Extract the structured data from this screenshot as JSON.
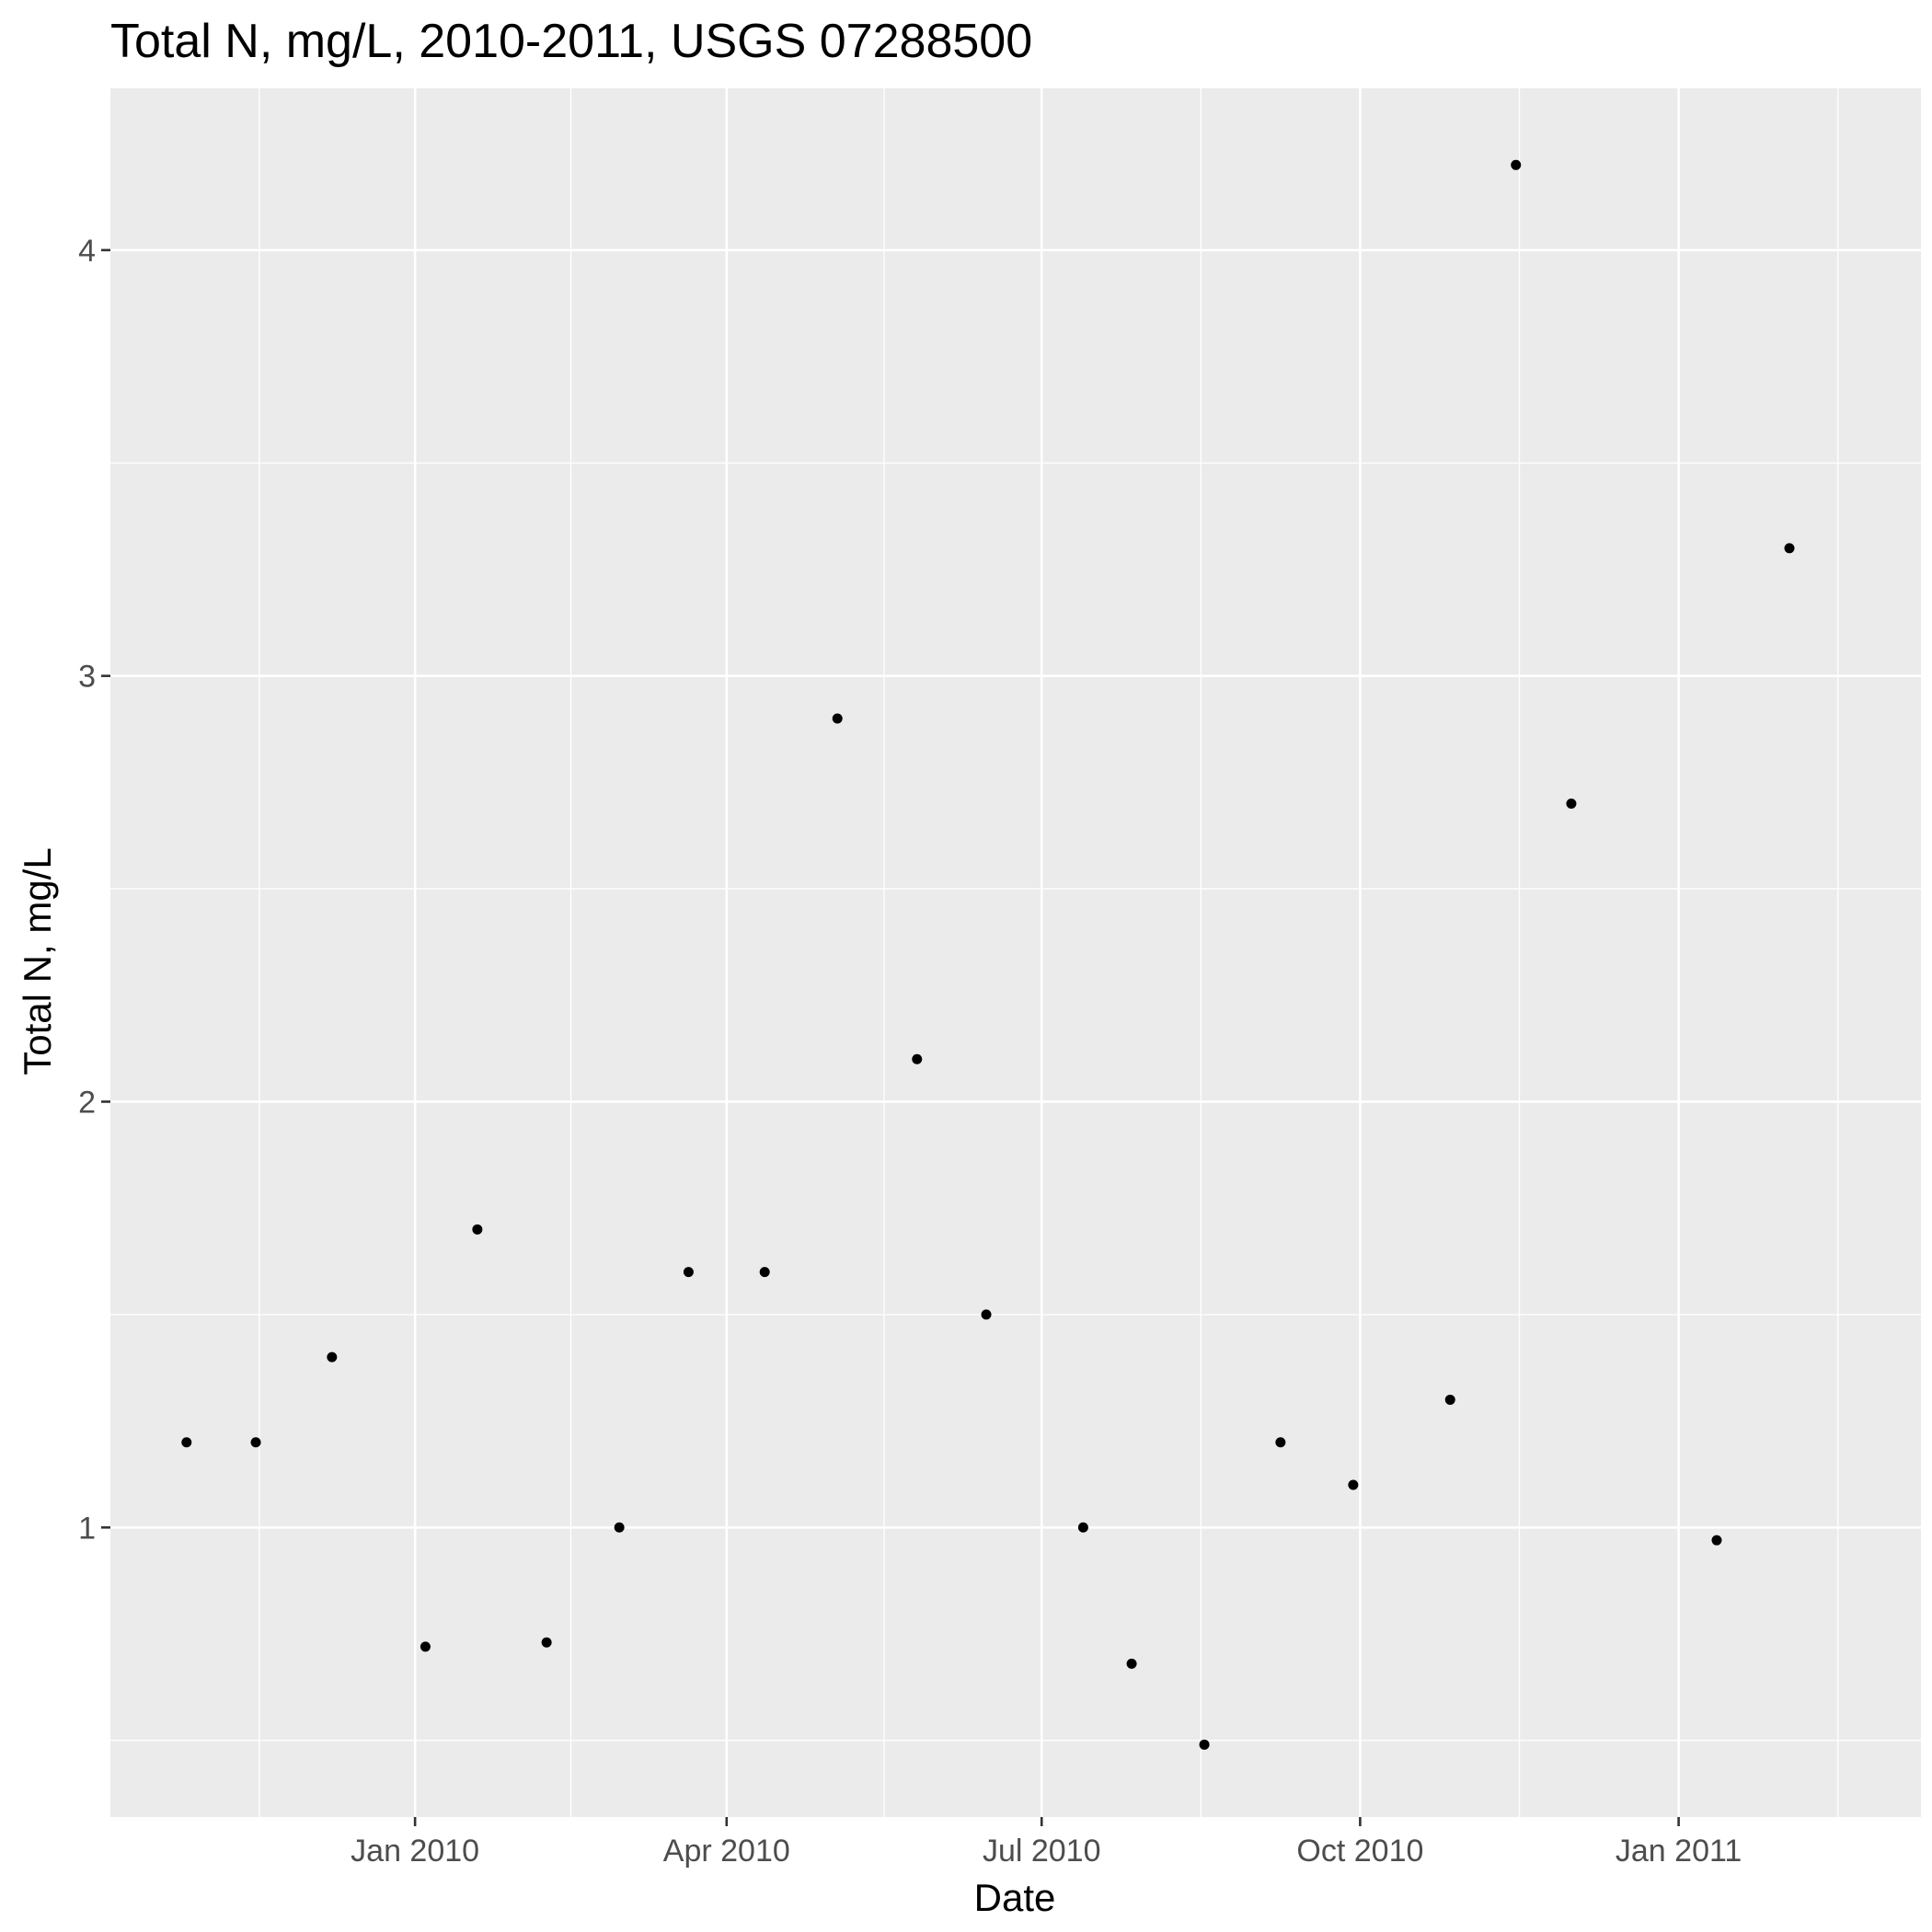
{
  "chart_data": {
    "type": "scatter",
    "title": "Total N, mg/L, 2010-2011, USGS 07288500",
    "xlabel": "Date",
    "ylabel": "Total N, mg/L",
    "x_axis_type": "date",
    "xlim": [
      "2009-10-05",
      "2011-03-12"
    ],
    "ylim": [
      0.32,
      4.38
    ],
    "x_ticks": [
      {
        "date": "2010-01-01",
        "label": "Jan 2010"
      },
      {
        "date": "2010-04-01",
        "label": "Apr 2010"
      },
      {
        "date": "2010-07-01",
        "label": "Jul 2010"
      },
      {
        "date": "2010-10-01",
        "label": "Oct 2010"
      },
      {
        "date": "2011-01-01",
        "label": "Jan 2011"
      }
    ],
    "y_ticks": [
      {
        "value": 1,
        "label": "1"
      },
      {
        "value": 2,
        "label": "2"
      },
      {
        "value": 3,
        "label": "3"
      },
      {
        "value": 4,
        "label": "4"
      }
    ],
    "grid": true,
    "background": "#EBEBEB",
    "gridline_color": "#FFFFFF",
    "point_color": "#000000",
    "points": [
      {
        "x": "2009-10-27",
        "y": 1.2
      },
      {
        "x": "2009-11-16",
        "y": 1.2
      },
      {
        "x": "2009-12-08",
        "y": 1.4
      },
      {
        "x": "2010-01-04",
        "y": 0.72
      },
      {
        "x": "2010-01-19",
        "y": 1.7
      },
      {
        "x": "2010-02-08",
        "y": 0.73
      },
      {
        "x": "2010-03-01",
        "y": 1.0
      },
      {
        "x": "2010-03-21",
        "y": 1.6
      },
      {
        "x": "2010-04-12",
        "y": 1.6
      },
      {
        "x": "2010-05-03",
        "y": 2.9
      },
      {
        "x": "2010-05-26",
        "y": 2.1
      },
      {
        "x": "2010-06-15",
        "y": 1.5
      },
      {
        "x": "2010-07-13",
        "y": 1.0
      },
      {
        "x": "2010-07-27",
        "y": 0.68
      },
      {
        "x": "2010-08-17",
        "y": 0.49
      },
      {
        "x": "2010-09-08",
        "y": 1.2
      },
      {
        "x": "2010-09-29",
        "y": 1.1
      },
      {
        "x": "2010-10-27",
        "y": 1.3
      },
      {
        "x": "2010-11-15",
        "y": 4.2
      },
      {
        "x": "2010-12-01",
        "y": 2.7
      },
      {
        "x": "2011-01-12",
        "y": 0.97
      },
      {
        "x": "2011-02-02",
        "y": 3.3
      }
    ]
  }
}
